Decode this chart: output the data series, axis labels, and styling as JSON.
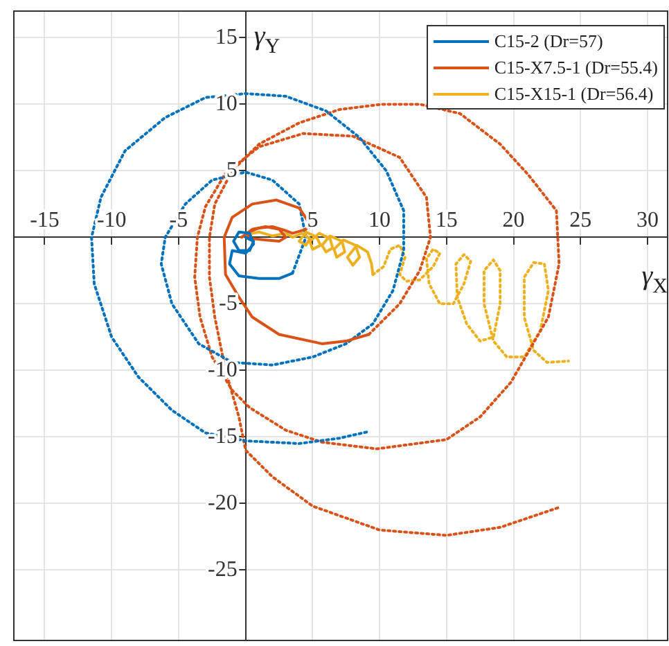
{
  "chart_data": {
    "type": "line",
    "xlabel": "γ$_{X}$",
    "ylabel": "γ$_{Y}$",
    "xlim": [
      -17.3,
      31.5
    ],
    "ylim": [
      -30.3,
      17
    ],
    "xticks": [
      -15,
      -10,
      -5,
      {
        "value": 0,
        "label": null
      },
      5,
      10,
      15,
      20,
      25,
      30
    ],
    "yticks": [
      -25,
      -20,
      -15,
      -10,
      -5,
      {
        "value": 0,
        "label": null
      },
      5,
      10,
      15
    ],
    "grid": true,
    "legend": "top right",
    "marker": "none",
    "line_style": "solid",
    "series": [
      {
        "name": "C15-2 (Dr=57)",
        "color": "#0072bd",
        "x": [
          0,
          0.6,
          0.3,
          -0.5,
          -0.9,
          -0.5,
          0.3,
          0.6,
          0,
          -1,
          -1.2,
          -0.5,
          1,
          2.5,
          3.5
        ],
        "values": [
          0,
          -0.3,
          -1,
          -1,
          -0.3,
          0.4,
          0.3,
          -0.5,
          -1.2,
          -1,
          -2,
          -2.9,
          -3.1,
          -3.1,
          -2.7
        ]
      },
      {
        "name": "C15-X7.5-1 (Dr=55.4)",
        "color": "#d95319",
        "x": [
          -0.3,
          0.5,
          1.5,
          2.5,
          3,
          2.5,
          1.5,
          0.5,
          0,
          1,
          2,
          3,
          3.5,
          4.5,
          4.8,
          4,
          2.3,
          0.5,
          -1,
          -1.6,
          -1.5,
          -0.5,
          0.5,
          2.5,
          5.7,
          7.5,
          9.2
        ],
        "values": [
          0,
          0.6,
          0.8,
          0.6,
          0,
          -0.3,
          -0.2,
          -0.1,
          0.3,
          0.7,
          0.8,
          0.5,
          0.3,
          0.6,
          1,
          2.2,
          2.8,
          2.5,
          1.5,
          0,
          -2.8,
          -4.5,
          -6,
          -7.3,
          -8,
          -7.8,
          -7.3
        ]
      },
      {
        "name": "C15-X15-1 (Dr=56.4)",
        "color": "#edb120",
        "x": [
          0,
          1,
          2,
          3,
          3.5,
          4.2,
          4.8,
          4.5,
          4,
          4.5,
          5.3,
          5.6,
          5,
          4.8,
          5.5,
          6.3,
          6.5,
          6,
          5.7,
          6.3,
          7.2,
          7.4,
          6.8,
          6.6,
          7.3,
          8.2,
          8.5,
          8,
          7.6,
          8.3,
          9.1,
          9.4,
          9.5
        ],
        "values": [
          0.2,
          0.4,
          0.1,
          0.3,
          0,
          0.3,
          -0.1,
          -0.6,
          -0.3,
          0.4,
          0,
          -0.6,
          -0.9,
          -0.3,
          0.3,
          -0.1,
          -0.8,
          -1.1,
          -0.6,
          0.1,
          -0.3,
          -1.1,
          -1.5,
          -0.9,
          -0.2,
          -0.6,
          -1.5,
          -2.1,
          -1.5,
          -0.6,
          -1.1,
          -2,
          -2.8
        ]
      },
      {
        "color": "#0072bd",
        "line_style": "dotted",
        "x": [
          3.5,
          4.5,
          4,
          2,
          0,
          -2.5,
          -4.5,
          -6,
          -6.3,
          -5.5,
          -3.5,
          -1,
          2,
          5,
          7.5,
          9.5,
          11,
          11.8,
          11.8,
          10.5,
          8.5,
          6,
          3,
          0,
          -3,
          -6,
          -9,
          -10.8,
          -11.5,
          -11.3,
          -10,
          -8,
          -5.5,
          -3,
          0,
          4,
          7,
          9.2
        ],
        "values": [
          -2.7,
          0,
          2.5,
          4.3,
          4.9,
          4.3,
          2.5,
          0,
          -2,
          -5,
          -8,
          -9.4,
          -9.6,
          -9,
          -8,
          -6.5,
          -4,
          -1,
          2,
          5,
          7.5,
          9.5,
          10.6,
          10.8,
          10.5,
          9,
          6.5,
          3,
          0,
          -3.5,
          -7.5,
          -10.5,
          -13,
          -14.7,
          -15.3,
          -15.5,
          -15.1,
          -14.6
        ]
      },
      {
        "color": "#d95319",
        "line_style": "dotted",
        "x": [
          9.2,
          11.5,
          13,
          13.8,
          13.5,
          11.5,
          8,
          4.3,
          1,
          -1.5,
          -3,
          -3.6,
          -3.8,
          -3.4,
          -2.5,
          -1,
          0.3,
          3,
          5.7,
          9.8,
          15,
          17.5,
          19.8,
          22.6,
          23.4,
          23.2,
          21.1,
          19,
          16,
          13,
          10.2,
          7,
          4,
          1,
          -1,
          -2.3,
          -2.7,
          -2.7,
          -2.3,
          -1.5,
          -0.5,
          0,
          2,
          5,
          10,
          15,
          19,
          23.4
        ],
        "values": [
          -7.3,
          -5,
          -2.5,
          0,
          3,
          6,
          7.6,
          7.8,
          6.8,
          4.8,
          2.3,
          0,
          -3,
          -6,
          -9,
          -11.5,
          -12.8,
          -14.5,
          -15.4,
          -15.9,
          -15.2,
          -13.5,
          -10.9,
          -6,
          -2,
          2,
          4.7,
          7,
          9.3,
          10,
          10,
          9.6,
          8.6,
          7,
          5,
          2.5,
          0,
          -3,
          -6,
          -10,
          -13.5,
          -16,
          -18,
          -20.2,
          -22,
          -22.4,
          -21.8,
          -20.3
        ]
      },
      {
        "color": "#edb120",
        "line_style": "dotted",
        "x": [
          9.5,
          10.3,
          10.8,
          11.5,
          11.9,
          11.5,
          12,
          13,
          14,
          14.5,
          14,
          13.5,
          13.7,
          14.5,
          15.5,
          16.3,
          16.8,
          16.3,
          15.7,
          15.8,
          16.5,
          17.5,
          18.5,
          19,
          19,
          18.5,
          17.8,
          17.8,
          18.5,
          19.5,
          20.8,
          22,
          22.6,
          22.3,
          21.5,
          20.8,
          20.8,
          21.5,
          22.5,
          24.1
        ],
        "values": [
          -2.8,
          -2.2,
          -0.9,
          -0.6,
          -1.5,
          -2.8,
          -3.3,
          -3.2,
          -2.2,
          -1.2,
          -0.9,
          -1.6,
          -3.5,
          -5,
          -5,
          -3.5,
          -1.8,
          -1.3,
          -2,
          -4.5,
          -6.5,
          -7.8,
          -7.5,
          -5,
          -2.5,
          -1.7,
          -2.5,
          -5,
          -7.8,
          -9,
          -9,
          -7,
          -4,
          -2,
          -1.9,
          -3,
          -6,
          -8.5,
          -9.4,
          -9.3
        ]
      }
    ]
  }
}
